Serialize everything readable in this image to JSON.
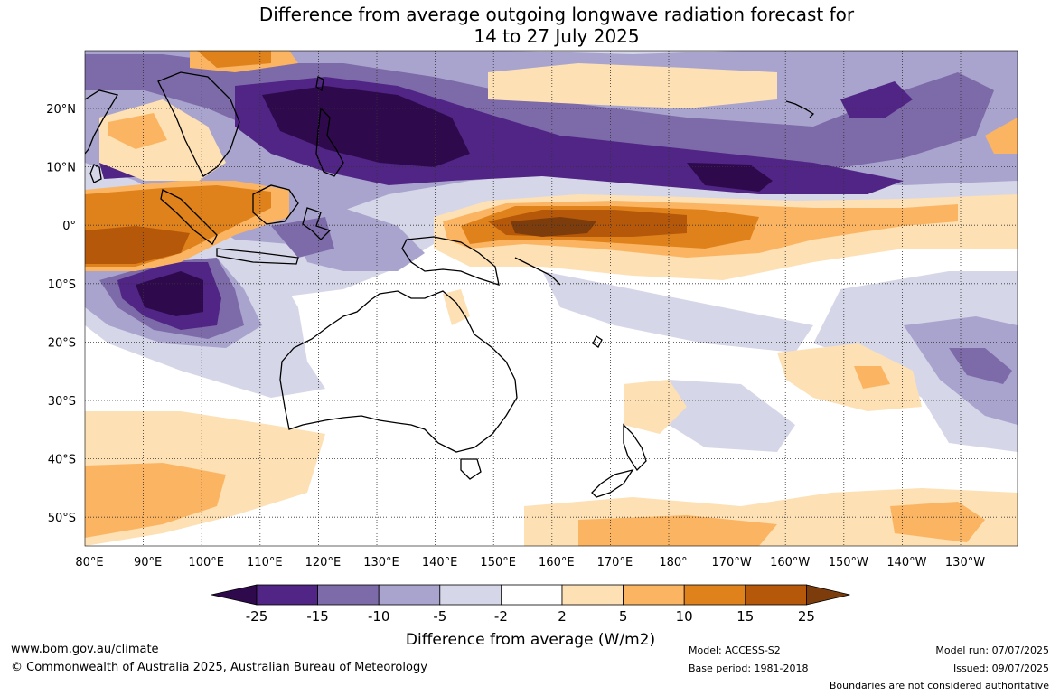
{
  "title": {
    "line1": "Difference from average outgoing longwave radiation forecast for",
    "line2": "14 to 27 July 2025"
  },
  "map": {
    "lon_labels": [
      "80°E",
      "90°E",
      "100°E",
      "110°E",
      "120°E",
      "130°E",
      "140°E",
      "150°E",
      "160°E",
      "170°E",
      "180°",
      "170°W",
      "160°W",
      "150°W",
      "140°W",
      "130°W"
    ],
    "lat_labels": [
      "20°N",
      "10°N",
      "0°",
      "10°S",
      "20°S",
      "30°S",
      "40°S",
      "50°S"
    ],
    "anomaly_colors": {
      "lt_-25": "#2e0a4d",
      "-25_-15": "#512585",
      "-15_-10": "#7d6aa8",
      "-10_-5": "#a9a4cd",
      "-5_-2": "#d6d6e9",
      "-2_2": "#ffffff",
      "2_5": "#fde0b4",
      "5_10": "#fbb562",
      "10_15": "#e0821b",
      "15_25": "#b5580a",
      "gt_25": "#7d3c0c"
    }
  },
  "colorbar": {
    "ticks": [
      "-25",
      "-15",
      "-10",
      "-5",
      "-2",
      "2",
      "5",
      "10",
      "15",
      "25"
    ],
    "colors": [
      "#2e0a4d",
      "#512585",
      "#7d6aa8",
      "#a9a4cd",
      "#d6d6e9",
      "#ffffff",
      "#fde0b4",
      "#fbb562",
      "#e0821b",
      "#b5580a",
      "#7d3c0c"
    ],
    "title": "Difference from average (W/m2)"
  },
  "footer": {
    "url": "www.bom.gov.au/climate",
    "copyright": "© Commonwealth of Australia 2025, Australian Bureau of Meteorology",
    "model": "Model: ACCESS-S2",
    "base_period": "Base period: 1981-2018",
    "model_run": "Model run: 07/07/2025",
    "issued": "Issued: 09/07/2025",
    "disclaimer": "Boundaries are not considered authoritative"
  }
}
